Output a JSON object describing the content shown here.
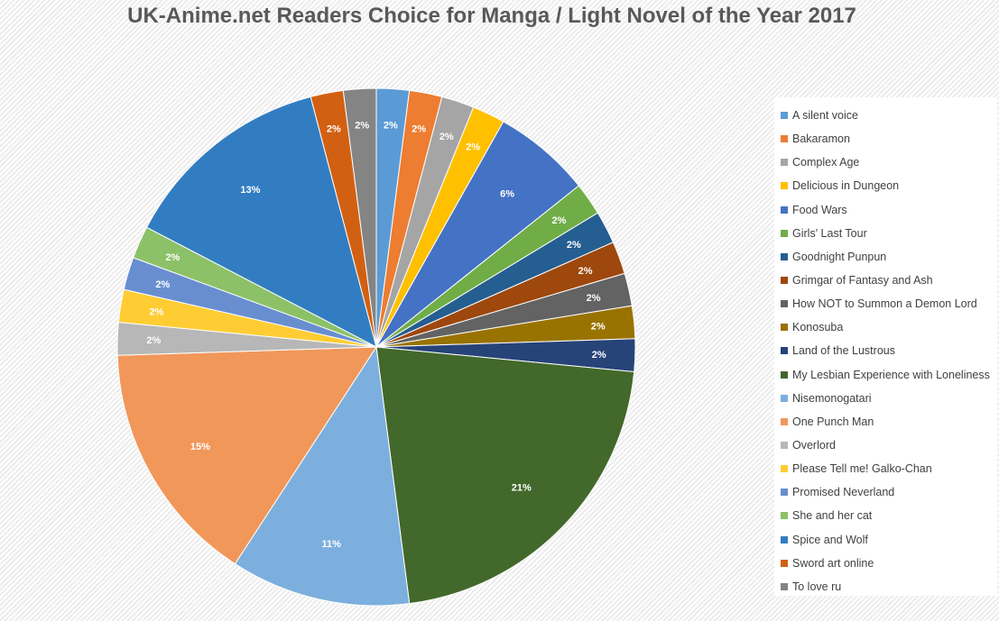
{
  "chart_data": {
    "type": "pie",
    "title": "UK-Anime.net Readers Choice for Manga / Light Novel of the Year 2017",
    "legend_position": "right",
    "start_angle": "12 o'clock, clockwise",
    "slices": [
      {
        "label": "A silent voice",
        "value": 2,
        "color": "#5B9BD5",
        "data_label": "2%"
      },
      {
        "label": "Bakaramon",
        "value": 2,
        "color": "#ED7D31",
        "data_label": "2%"
      },
      {
        "label": "Complex Age",
        "value": 2,
        "color": "#A5A5A5",
        "data_label": "2%"
      },
      {
        "label": "Delicious in Dungeon",
        "value": 2,
        "color": "#FFC000",
        "data_label": "2%"
      },
      {
        "label": "Food Wars",
        "value": 6,
        "color": "#4472C4",
        "data_label": "6%"
      },
      {
        "label": "Girls' Last Tour",
        "value": 2,
        "color": "#70AD47",
        "data_label": "2%"
      },
      {
        "label": "Goodnight Punpun",
        "value": 2,
        "color": "#255E91",
        "data_label": "2%"
      },
      {
        "label": "Grimgar of Fantasy and Ash",
        "value": 2,
        "color": "#9E480E",
        "data_label": "2%"
      },
      {
        "label": "How NOT to Summon a Demon Lord",
        "value": 2,
        "color": "#636363",
        "data_label": "2%"
      },
      {
        "label": "Konosuba",
        "value": 2,
        "color": "#997300",
        "data_label": "2%"
      },
      {
        "label": "Land of the Lustrous",
        "value": 2,
        "color": "#264478",
        "data_label": "2%"
      },
      {
        "label": "My Lesbian Experience with Loneliness",
        "value": 21,
        "color": "#43682B",
        "data_label": "21%"
      },
      {
        "label": "Nisemonogatari",
        "value": 11,
        "color": "#7CAFDD",
        "data_label": "11%"
      },
      {
        "label": "One Punch Man",
        "value": 15,
        "color": "#F1975A",
        "data_label": "15%"
      },
      {
        "label": "Overlord",
        "value": 2,
        "color": "#B7B7B7",
        "data_label": "2%"
      },
      {
        "label": "Please Tell me! Galko-Chan",
        "value": 2,
        "color": "#FFCD33",
        "data_label": "2%"
      },
      {
        "label": "Promised Neverland",
        "value": 2,
        "color": "#698ED0",
        "data_label": "2%"
      },
      {
        "label": "She and her cat",
        "value": 2,
        "color": "#8CC168",
        "data_label": "2%"
      },
      {
        "label": "Spice and Wolf",
        "value": 13,
        "color": "#327DC2",
        "data_label": "13%"
      },
      {
        "label": "Sword art online",
        "value": 2,
        "color": "#D26012",
        "data_label": "2%"
      },
      {
        "label": "To love ru",
        "value": 2,
        "color": "#848484",
        "data_label": "2%"
      }
    ]
  }
}
